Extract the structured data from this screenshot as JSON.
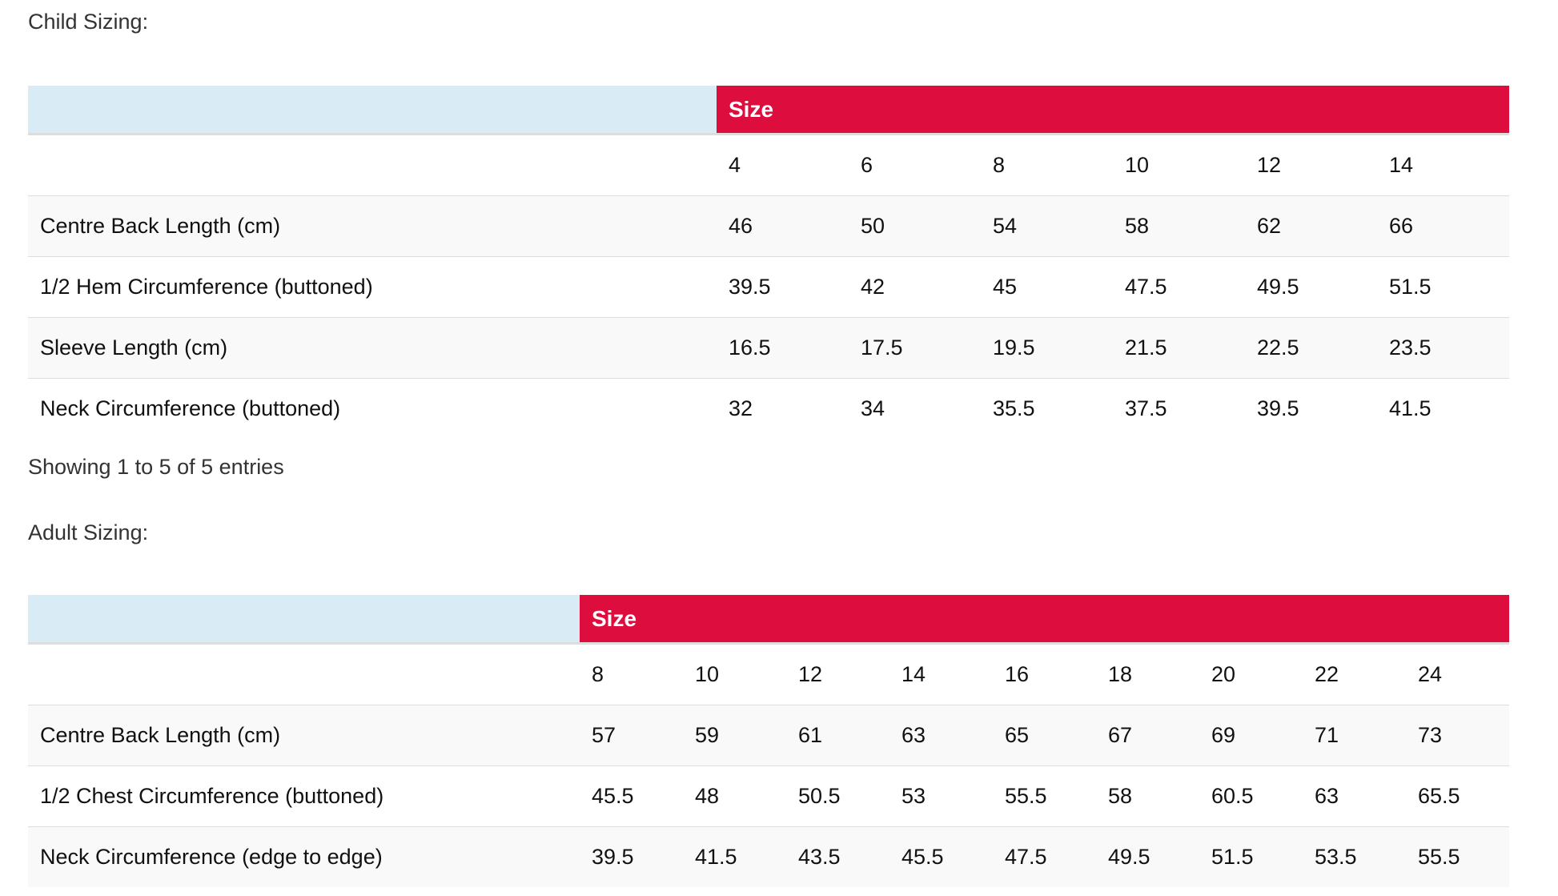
{
  "child": {
    "title": "Child Sizing:",
    "header": "Size",
    "sizes": [
      "4",
      "6",
      "8",
      "10",
      "12",
      "14"
    ],
    "rows": [
      {
        "label": "Centre Back Length (cm)",
        "values": [
          "46",
          "50",
          "54",
          "58",
          "62",
          "66"
        ]
      },
      {
        "label": "1/2 Hem Circumference (buttoned)",
        "values": [
          "39.5",
          "42",
          "45",
          "47.5",
          "49.5",
          "51.5"
        ]
      },
      {
        "label": "Sleeve Length (cm)",
        "values": [
          "16.5",
          "17.5",
          "19.5",
          "21.5",
          "22.5",
          "23.5"
        ]
      },
      {
        "label": "Neck Circumference (buttoned)",
        "values": [
          "32",
          "34",
          "35.5",
          "37.5",
          "39.5",
          "41.5"
        ]
      }
    ],
    "info": "Showing 1 to 5 of 5 entries"
  },
  "adult": {
    "title": "Adult Sizing:",
    "header": "Size",
    "sizes": [
      "8",
      "10",
      "12",
      "14",
      "16",
      "18",
      "20",
      "22",
      "24"
    ],
    "rows": [
      {
        "label": "Centre Back Length (cm)",
        "values": [
          "57",
          "59",
          "61",
          "63",
          "65",
          "67",
          "69",
          "71",
          "73"
        ]
      },
      {
        "label": "1/2 Chest Circumference (buttoned)",
        "values": [
          "45.5",
          "48",
          "50.5",
          "53",
          "55.5",
          "58",
          "60.5",
          "63",
          "65.5"
        ]
      },
      {
        "label": "Neck Circumference (edge to edge)",
        "values": [
          "39.5",
          "41.5",
          "43.5",
          "45.5",
          "47.5",
          "49.5",
          "51.5",
          "53.5",
          "55.5"
        ]
      }
    ]
  },
  "colors": {
    "size_header": "#dd0d3e",
    "blank_header": "#d9ecf6",
    "stripe": "#f9f9f9"
  }
}
